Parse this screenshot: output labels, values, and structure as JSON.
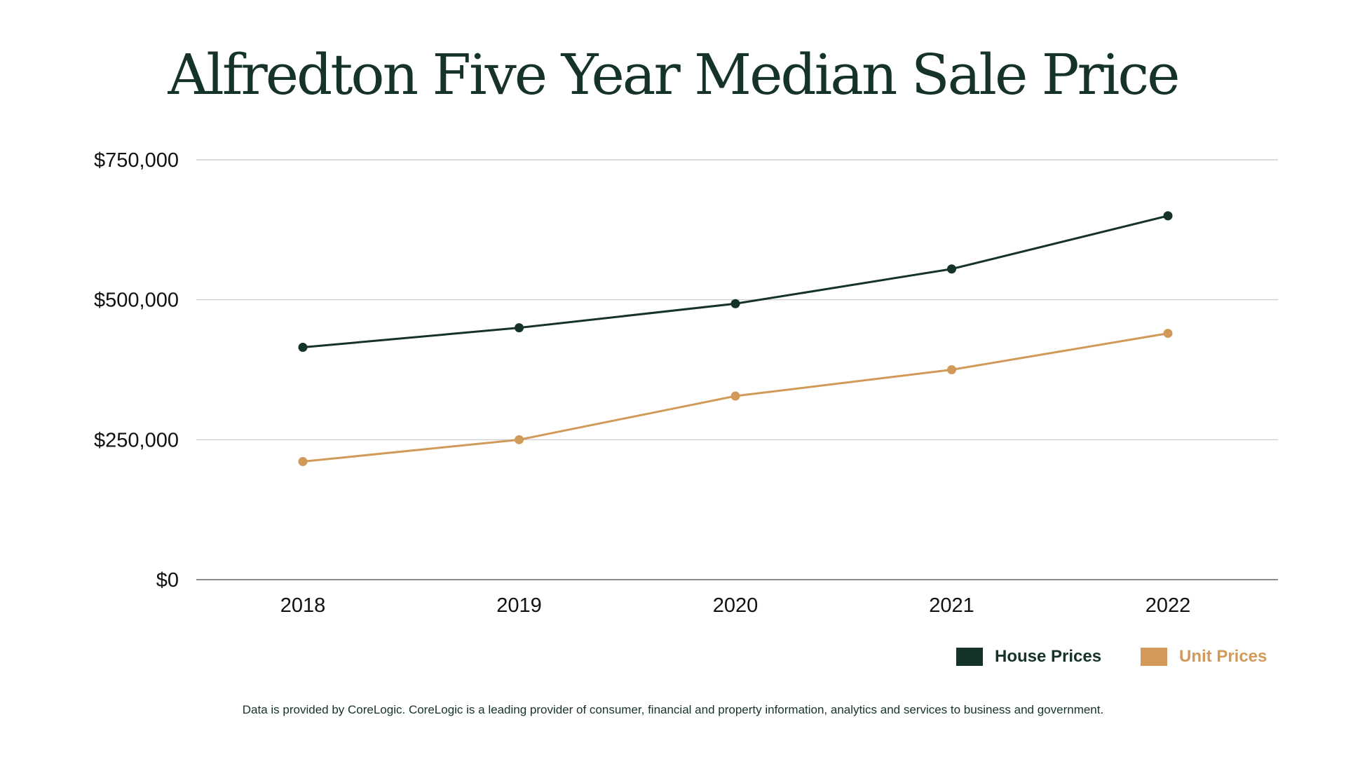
{
  "colors": {
    "house": "#163328",
    "unit": "#d19a59",
    "grid": "#c8c8c8",
    "axis": "#666666"
  },
  "footnote": "Data is provided by CoreLogic. CoreLogic is a leading provider of consumer, financial and property information, analytics and services to business and government.",
  "chart_data": {
    "type": "line",
    "title": "Alfredton Five Year Median Sale Price",
    "xlabel": "",
    "ylabel": "",
    "categories": [
      "2018",
      "2019",
      "2020",
      "2021",
      "2022"
    ],
    "ylim": [
      0,
      750000
    ],
    "yticks": [
      0,
      250000,
      500000,
      750000
    ],
    "ytick_labels": [
      "$0",
      "$250,000",
      "$500,000",
      "$750,000"
    ],
    "grid": true,
    "legend_position": "bottom-right",
    "series": [
      {
        "name": "House Prices",
        "color": "#163328",
        "values": [
          415000,
          450000,
          493000,
          555000,
          650000
        ]
      },
      {
        "name": "Unit Prices",
        "color": "#d19a59",
        "values": [
          211000,
          250000,
          328000,
          375000,
          440000
        ]
      }
    ]
  }
}
